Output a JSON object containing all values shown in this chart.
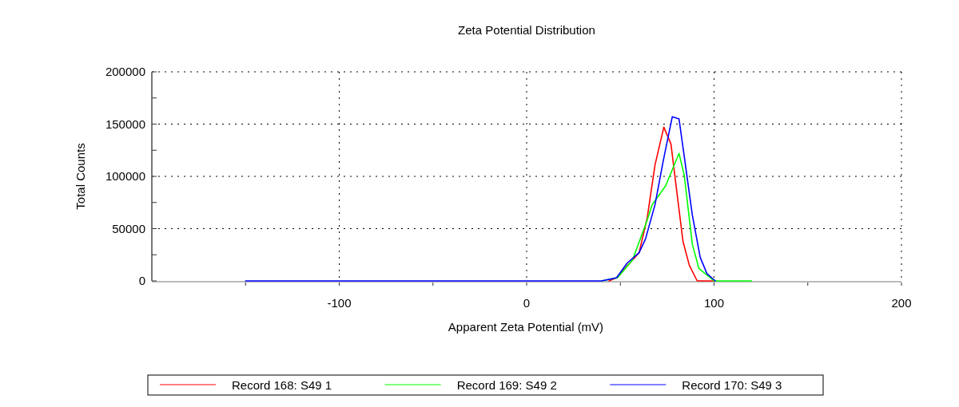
{
  "chart_data": {
    "type": "line",
    "title": "Zeta Potential Distribution",
    "xlabel": "Apparent Zeta Potential (mV)",
    "ylabel": "Total Counts",
    "xlim": [
      -200,
      200
    ],
    "xticks": [
      {
        "value": -150,
        "label": null
      },
      -100,
      {
        "value": -50,
        "label": null
      },
      0,
      {
        "value": 50,
        "label": null
      },
      100,
      {
        "value": 150,
        "label": null
      },
      200
    ],
    "ylim": [
      0,
      200000
    ],
    "yticks": [
      0,
      {
        "value": 25000,
        "label": null
      },
      50000,
      {
        "value": 75000,
        "label": null
      },
      100000,
      {
        "value": 125000,
        "label": null
      },
      150000,
      {
        "value": 175000,
        "label": null
      },
      200000
    ],
    "grid": true,
    "legend": "bottom",
    "marker": "none",
    "line_style": "solid",
    "series": [
      {
        "name": "Record 168: S49 1",
        "color": "#ff0000",
        "x": [
          44,
          48,
          60,
          64.3,
          68.5,
          73.2,
          77,
          79.6,
          83.4,
          86.8,
          91,
          100
        ],
        "values": [
          0,
          3000,
          27000,
          60000,
          111000,
          147000,
          131000,
          93000,
          38000,
          15000,
          0,
          0
        ]
      },
      {
        "name": "Record 169: S49 2",
        "color": "#00ff00",
        "x": [
          40,
          48.5,
          56.5,
          64.3,
          67,
          74.2,
          81.3,
          84.1,
          88.4,
          91.9,
          100,
          120
        ],
        "values": [
          0,
          3000,
          20000,
          58000,
          73000,
          91000,
          122000,
          101000,
          35000,
          12000,
          0,
          0
        ]
      },
      {
        "name": "Record 170: S49 3",
        "color": "#0000ff",
        "x": [
          -150,
          40,
          48,
          53.6,
          60,
          63.4,
          68.5,
          72.8,
          77.7,
          81.3,
          84.1,
          88.4,
          92.6,
          96.2,
          100.7
        ],
        "values": [
          0,
          0,
          3000,
          17000,
          27000,
          40000,
          73000,
          114000,
          157000,
          155000,
          119000,
          63000,
          22600,
          7000,
          0
        ]
      }
    ]
  }
}
